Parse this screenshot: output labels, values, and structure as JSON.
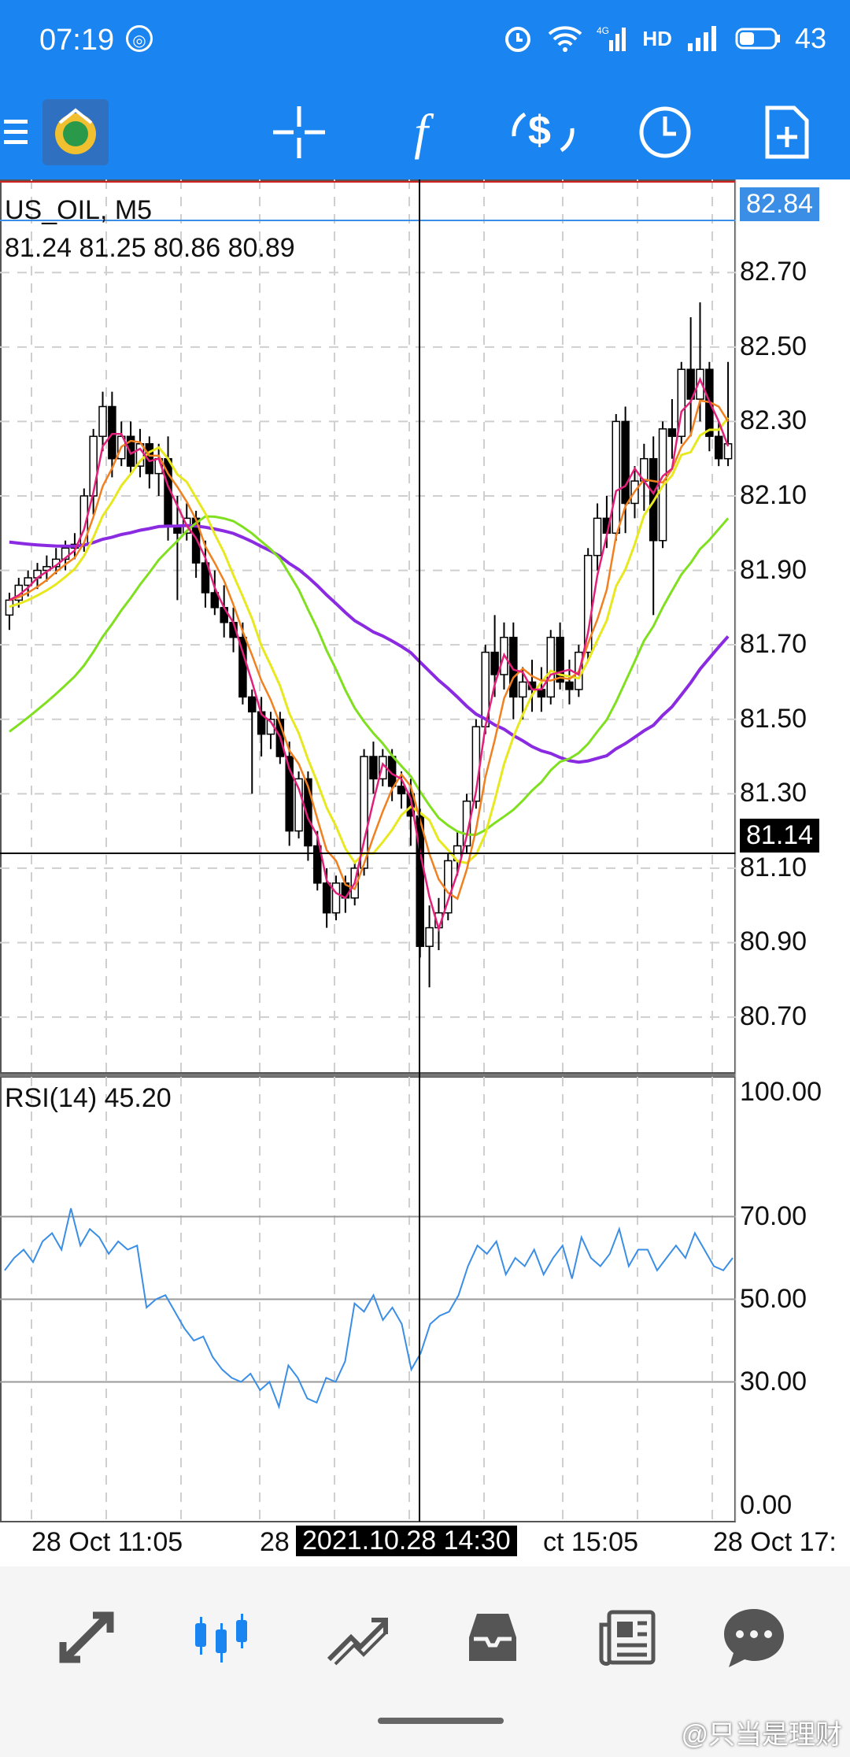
{
  "status": {
    "time": "07:19",
    "battery": "43",
    "net": "4G",
    "hd": "HD"
  },
  "toolbar": {
    "icons": [
      "menu-icon",
      "app-logo",
      "crosshair-icon",
      "indicators-icon",
      "trade-icon",
      "timeframe-icon",
      "new-order-icon"
    ]
  },
  "chart": {
    "symbol": "US_OIL, M5",
    "ohlc": "81.24 81.25 80.86 80.89",
    "current_price": "82.84",
    "crosshair_price": "81.14",
    "crosshair_time": "2021.10.28 14:30",
    "price_ticks": [
      "82.70",
      "82.50",
      "82.30",
      "82.10",
      "81.90",
      "81.70",
      "81.50",
      "81.30",
      "81.10",
      "80.90",
      "80.70"
    ],
    "x_labels": [
      "28 Oct 11:05",
      "28",
      "ct 15:05",
      "28 Oct 17:"
    ],
    "colors": {
      "bg": "#ffffff",
      "grid": "#cfcfcf",
      "ma_purple": "#8a2be2",
      "ma_green": "#80e020",
      "ma_yellow": "#e8e820",
      "ma_orange": "#f08020",
      "ma_pink": "#e0207a",
      "rsi": "#3a8ee6",
      "current_line": "#3a8ee6",
      "accent": "#1a84f0"
    }
  },
  "chart_data": {
    "type": "line",
    "title": "US_OIL, M5",
    "ylim": [
      80.55,
      82.95
    ],
    "candles": [
      [
        81.78,
        81.84,
        81.74,
        81.82
      ],
      [
        81.82,
        81.88,
        81.8,
        81.86
      ],
      [
        81.86,
        81.9,
        81.83,
        81.88
      ],
      [
        81.88,
        81.92,
        81.85,
        81.9
      ],
      [
        81.9,
        81.94,
        81.87,
        81.91
      ],
      [
        81.91,
        81.96,
        81.89,
        81.93
      ],
      [
        81.93,
        81.98,
        81.9,
        81.96
      ],
      [
        81.96,
        82.0,
        81.93,
        81.97
      ],
      [
        81.97,
        82.12,
        81.95,
        82.1
      ],
      [
        82.1,
        82.28,
        82.05,
        82.26
      ],
      [
        82.26,
        82.38,
        82.22,
        82.34
      ],
      [
        82.34,
        82.38,
        82.15,
        82.2
      ],
      [
        82.2,
        82.3,
        82.18,
        82.26
      ],
      [
        82.26,
        82.3,
        82.16,
        82.18
      ],
      [
        82.18,
        82.28,
        82.15,
        82.24
      ],
      [
        82.24,
        82.26,
        82.12,
        82.16
      ],
      [
        82.16,
        82.24,
        82.1,
        82.2
      ],
      [
        82.2,
        82.26,
        81.98,
        82.02
      ],
      [
        82.02,
        82.1,
        81.82,
        82.0
      ],
      [
        82.0,
        82.08,
        81.98,
        82.04
      ],
      [
        82.04,
        82.06,
        81.88,
        81.92
      ],
      [
        81.92,
        81.98,
        81.8,
        81.84
      ],
      [
        81.84,
        81.9,
        81.78,
        81.8
      ],
      [
        81.8,
        81.86,
        81.72,
        81.76
      ],
      [
        81.76,
        81.8,
        81.68,
        81.72
      ],
      [
        81.72,
        81.76,
        81.54,
        81.56
      ],
      [
        81.56,
        81.58,
        81.3,
        81.52
      ],
      [
        81.52,
        81.56,
        81.4,
        81.46
      ],
      [
        81.46,
        81.52,
        81.42,
        81.5
      ],
      [
        81.5,
        81.52,
        81.38,
        81.4
      ],
      [
        81.4,
        81.44,
        81.16,
        81.2
      ],
      [
        81.2,
        81.36,
        81.18,
        81.34
      ],
      [
        81.34,
        81.36,
        81.12,
        81.16
      ],
      [
        81.16,
        81.2,
        81.04,
        81.06
      ],
      [
        81.06,
        81.1,
        80.94,
        80.98
      ],
      [
        80.98,
        81.08,
        80.96,
        81.06
      ],
      [
        81.06,
        81.08,
        80.98,
        81.02
      ],
      [
        81.02,
        81.12,
        81.0,
        81.1
      ],
      [
        81.1,
        81.42,
        81.08,
        81.4
      ],
      [
        81.4,
        81.44,
        81.3,
        81.34
      ],
      [
        81.34,
        81.42,
        81.32,
        81.4
      ],
      [
        81.4,
        81.42,
        81.28,
        81.32
      ],
      [
        81.32,
        81.36,
        81.26,
        81.3
      ],
      [
        81.3,
        81.34,
        81.16,
        81.24
      ],
      [
        81.24,
        81.26,
        80.86,
        80.89
      ],
      [
        80.89,
        81.0,
        80.78,
        80.94
      ],
      [
        80.94,
        81.02,
        80.88,
        80.98
      ],
      [
        80.98,
        81.14,
        80.96,
        81.12
      ],
      [
        81.12,
        81.2,
        81.08,
        81.16
      ],
      [
        81.16,
        81.3,
        81.14,
        81.28
      ],
      [
        81.28,
        81.5,
        81.26,
        81.48
      ],
      [
        81.48,
        81.7,
        81.46,
        81.68
      ],
      [
        81.68,
        81.78,
        81.56,
        81.62
      ],
      [
        81.62,
        81.76,
        81.58,
        81.72
      ],
      [
        81.72,
        81.76,
        81.5,
        81.56
      ],
      [
        81.56,
        81.64,
        81.5,
        81.6
      ],
      [
        81.6,
        81.66,
        81.52,
        81.58
      ],
      [
        81.58,
        81.64,
        81.52,
        81.56
      ],
      [
        81.56,
        81.74,
        81.54,
        81.72
      ],
      [
        81.72,
        81.76,
        81.58,
        81.6
      ],
      [
        81.6,
        81.66,
        81.54,
        81.58
      ],
      [
        81.58,
        81.7,
        81.56,
        81.68
      ],
      [
        81.68,
        81.96,
        81.66,
        81.94
      ],
      [
        81.94,
        82.08,
        81.9,
        82.04
      ],
      [
        82.04,
        82.1,
        81.96,
        82.0
      ],
      [
        82.0,
        82.32,
        81.98,
        82.3
      ],
      [
        82.3,
        82.34,
        82.0,
        82.08
      ],
      [
        82.08,
        82.18,
        82.04,
        82.14
      ],
      [
        82.14,
        82.24,
        82.06,
        82.2
      ],
      [
        82.2,
        82.26,
        81.78,
        81.98
      ],
      [
        81.98,
        82.3,
        81.96,
        82.28
      ],
      [
        82.28,
        82.36,
        82.2,
        82.26
      ],
      [
        82.26,
        82.46,
        82.24,
        82.44
      ],
      [
        82.44,
        82.58,
        82.26,
        82.36
      ],
      [
        82.36,
        82.62,
        82.3,
        82.44
      ],
      [
        82.44,
        82.46,
        82.22,
        82.26
      ],
      [
        82.26,
        82.3,
        82.18,
        82.2
      ],
      [
        82.2,
        82.46,
        82.18,
        82.24
      ]
    ],
    "rsi_values": [
      57,
      60,
      62,
      59,
      64,
      66,
      62,
      72,
      63,
      67,
      65,
      61,
      64,
      62,
      63,
      48,
      50,
      51,
      47,
      43,
      40,
      41,
      36,
      33,
      31,
      30,
      32,
      28,
      30,
      24,
      34,
      31,
      26,
      25,
      31,
      30,
      35,
      49,
      47,
      51,
      45,
      48,
      44,
      33,
      37,
      44,
      46,
      47,
      51,
      58,
      63,
      61,
      64,
      56,
      60,
      58,
      62,
      56,
      60,
      63,
      55,
      65,
      60,
      58,
      61,
      67,
      58,
      62,
      62,
      57,
      60,
      63,
      60,
      66,
      62,
      58,
      57,
      60
    ],
    "rsi": {
      "label": "RSI(14) 45.20",
      "ticks": [
        "100.00",
        "70.00",
        "50.00",
        "30.00",
        "0.00"
      ],
      "ylim": [
        0,
        100
      ]
    }
  },
  "bottom_nav": {
    "items": [
      "quotes-icon",
      "chart-icon",
      "trade-icon",
      "history-icon",
      "news-icon",
      "chat-icon"
    ],
    "active": "chart-icon"
  },
  "watermark": "@只当是理财"
}
